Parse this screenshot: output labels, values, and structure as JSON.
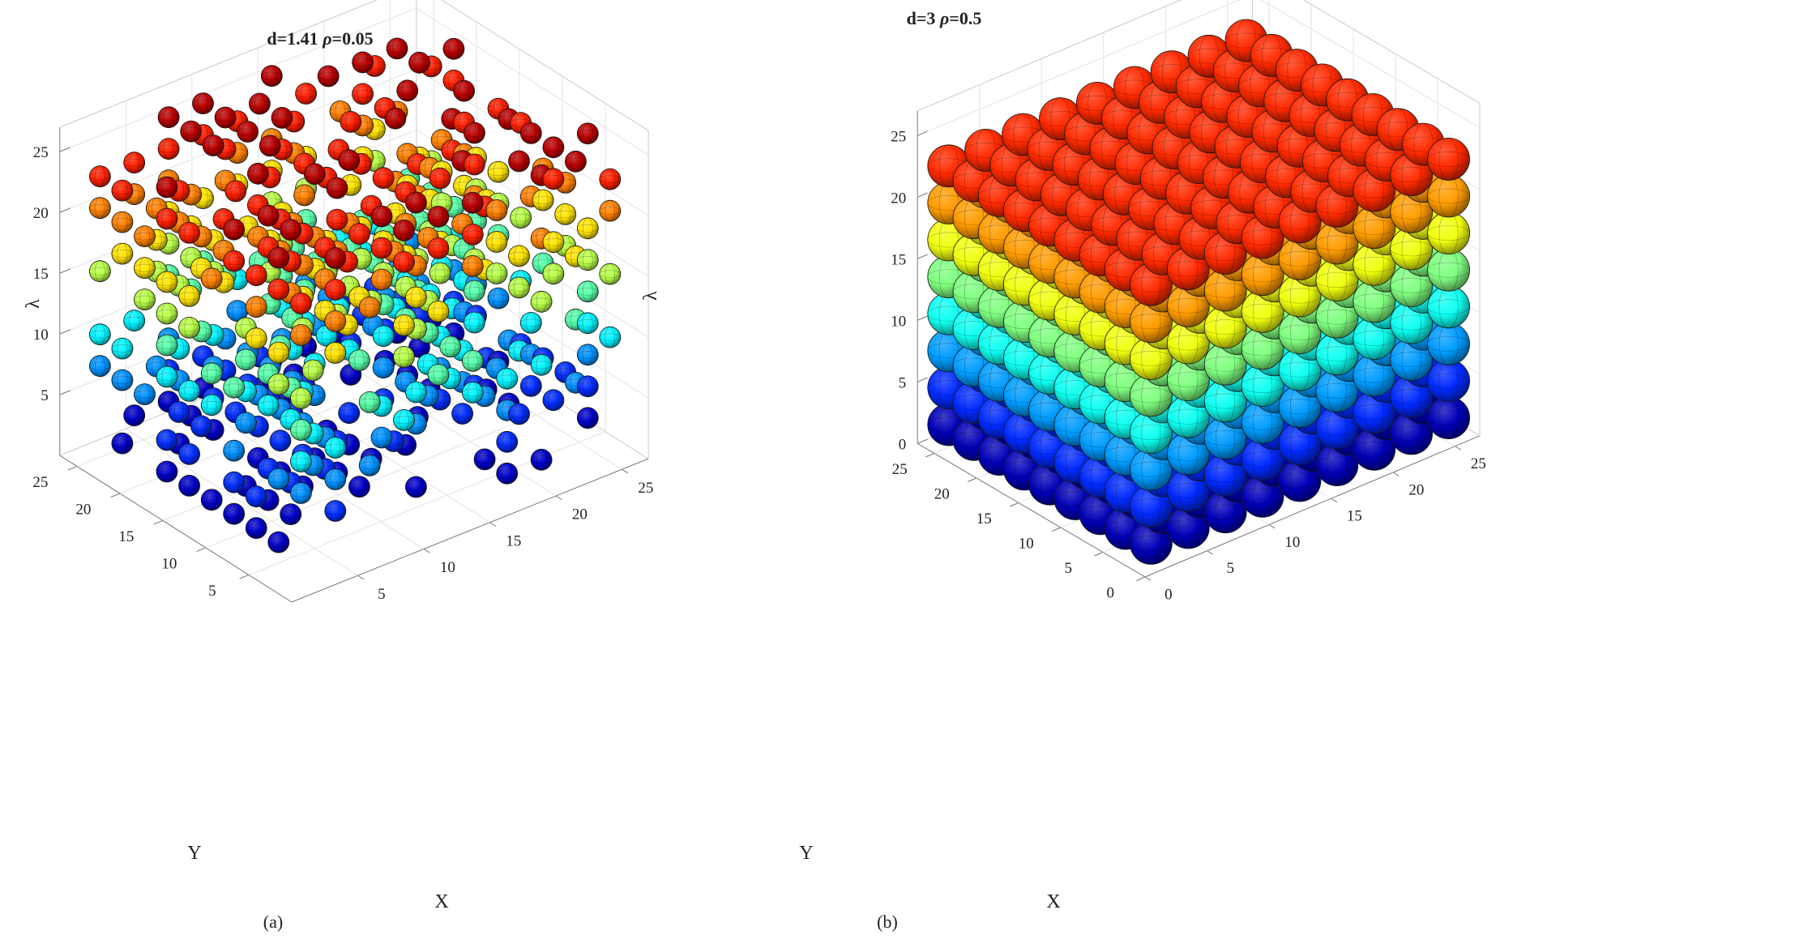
{
  "chart_data": [
    {
      "type": "scatter",
      "variant": "3d-sphere-lattice",
      "title": "d=1.41",
      "title_symbol": "ρ",
      "title_rest": "=0.05",
      "caption": "(a)",
      "xlabel": "X",
      "ylabel": "Y",
      "zlabel": "λ",
      "xlim": [
        0,
        27
      ],
      "ylim": [
        0,
        27
      ],
      "zlim": [
        0,
        27
      ],
      "xticks": [
        "5",
        "10",
        "15",
        "20",
        "25"
      ],
      "yticks": [
        "5",
        "10",
        "15",
        "20",
        "25"
      ],
      "zticks": [
        "5",
        "10",
        "15",
        "20",
        "25"
      ],
      "grid": true,
      "colormap": "jet",
      "lattice": {
        "x": [
          2,
          27
        ],
        "y": [
          2,
          27
        ],
        "z": [
          2,
          26
        ],
        "step": 2.6,
        "sphere_radius": 0.75,
        "occupancy": 0.5
      }
    },
    {
      "type": "scatter",
      "variant": "3d-sphere-lattice",
      "title": "d=3",
      "title_symbol": "ρ",
      "title_rest": "=0.5",
      "caption": "(b)",
      "xlabel": "X",
      "ylabel": "Y",
      "zlabel": "λ",
      "xlim": [
        0,
        27
      ],
      "ylim": [
        0,
        27
      ],
      "zlim": [
        0,
        27
      ],
      "xticks": [
        "0",
        "5",
        "10",
        "15",
        "20",
        "25"
      ],
      "yticks": [
        "0",
        "5",
        "10",
        "15",
        "20",
        "25"
      ],
      "zticks": [
        "0",
        "5",
        "10",
        "15",
        "20",
        "25"
      ],
      "grid": true,
      "colormap": "jet",
      "lattice": {
        "x": [
          1.5,
          25.5
        ],
        "y": [
          1.5,
          25.5
        ],
        "z": [
          1.5,
          24.5
        ],
        "step": 3,
        "sphere_radius": 1.55,
        "occupancy": 1.0
      }
    }
  ]
}
